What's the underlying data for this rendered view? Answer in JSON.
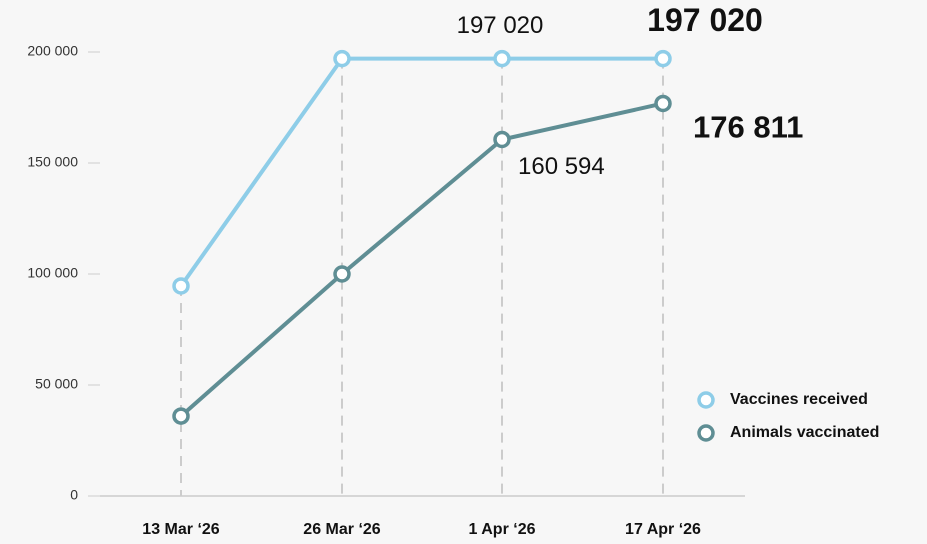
{
  "chart_data": {
    "type": "line",
    "categories": [
      "13 Mar ‘26",
      "26 Mar ‘26",
      "1 Apr ‘26",
      "17 Apr ‘26"
    ],
    "series": [
      {
        "name": "Vaccines received",
        "color": "#8ecde8",
        "values": [
          94600,
          197020,
          197020,
          197020
        ],
        "value_labels": [
          null,
          null,
          "197 020",
          "197 020"
        ]
      },
      {
        "name": "Animals vaccinated",
        "color": "#5f8e94",
        "values": [
          36000,
          100000,
          160594,
          176811
        ],
        "value_labels": [
          null,
          null,
          "160 594",
          "176 811"
        ]
      }
    ],
    "ylim": [
      0,
      200000
    ],
    "yticks": [
      0,
      {
        "value": 50000,
        "label": "50 000"
      },
      {
        "value": 100000,
        "label": "100 000"
      },
      {
        "value": 150000,
        "label": "150 000"
      },
      {
        "value": 200000,
        "label": "200 000"
      }
    ],
    "legend": "lower right"
  }
}
